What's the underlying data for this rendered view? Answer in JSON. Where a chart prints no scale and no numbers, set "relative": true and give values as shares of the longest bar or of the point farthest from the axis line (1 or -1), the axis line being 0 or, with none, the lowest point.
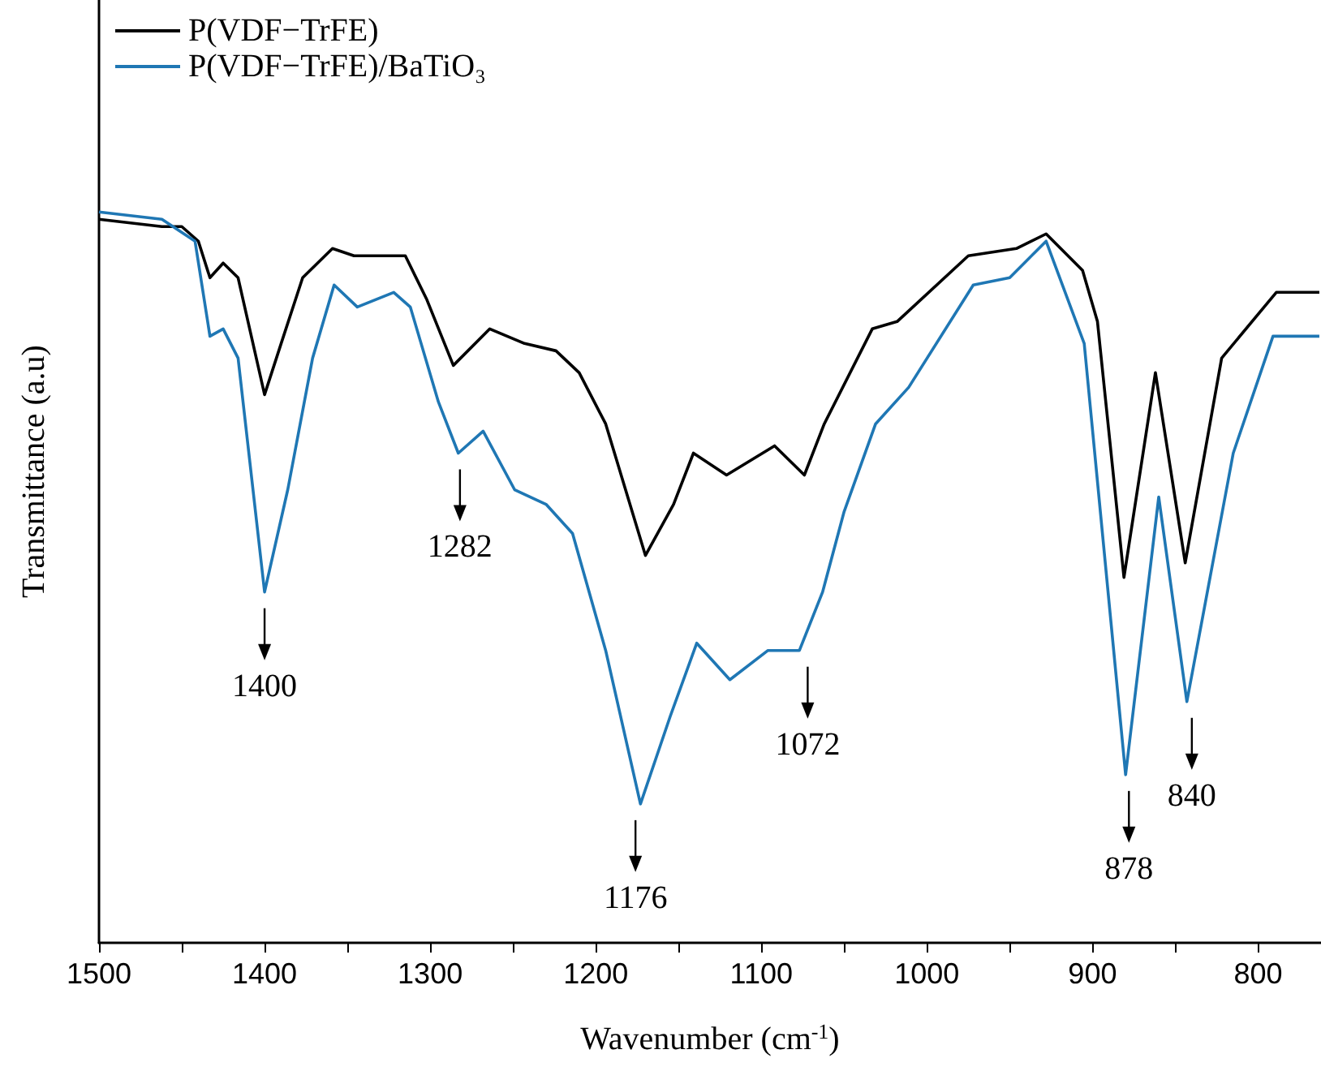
{
  "chart_data": {
    "type": "line",
    "relative": true,
    "xlabel": "Wavenumber (cm$^{-1}$)",
    "ylabel": "Transmittance (a.u)",
    "xlim": [
      1500,
      762
    ],
    "xticks": [
      1500,
      {
        "value": 1450,
        "label": null
      },
      1400,
      {
        "value": 1350,
        "label": null
      },
      1300,
      {
        "value": 1250,
        "label": null
      },
      1200,
      {
        "value": 1150,
        "label": null
      },
      1100,
      {
        "value": 1050,
        "label": null
      },
      1000,
      {
        "value": 950,
        "label": null
      },
      900,
      {
        "value": 850,
        "label": null
      },
      800
    ],
    "legend": "top left",
    "grid": false,
    "marker": "none",
    "line_style": "solid",
    "series": [
      {
        "name": "P(VDF−TrFE)",
        "color": "#000000",
        "x": [
          1500,
          1462,
          1450,
          1440,
          1433,
          1425,
          1416,
          1400,
          1390,
          1377,
          1359,
          1346,
          1325,
          1315,
          1302,
          1286,
          1264,
          1243,
          1224,
          1210,
          1194,
          1170,
          1153,
          1141,
          1121,
          1092,
          1074,
          1062,
          1033,
          1018,
          975,
          946,
          928,
          906,
          897,
          881,
          862,
          844,
          822,
          789,
          763
        ],
        "values": [
          0.99,
          0.98,
          0.98,
          0.96,
          0.91,
          0.93,
          0.91,
          0.75,
          0.82,
          0.91,
          0.95,
          0.94,
          0.94,
          0.94,
          0.88,
          0.79,
          0.84,
          0.82,
          0.81,
          0.78,
          0.71,
          0.53,
          0.6,
          0.67,
          0.64,
          0.68,
          0.64,
          0.71,
          0.84,
          0.85,
          0.94,
          0.95,
          0.97,
          0.92,
          0.85,
          0.5,
          0.78,
          0.52,
          0.8,
          0.89,
          0.89
        ]
      },
      {
        "name": "P(VDF−TrFE)/BaTiO₃",
        "color": "#1f77b4",
        "x": [
          1500,
          1462,
          1442,
          1433,
          1425,
          1416,
          1400,
          1386,
          1371,
          1358,
          1344,
          1322,
          1312,
          1295,
          1283,
          1268,
          1249,
          1230,
          1214,
          1194,
          1173,
          1155,
          1139,
          1119,
          1096,
          1077,
          1063,
          1050,
          1031,
          1011,
          972,
          950,
          928,
          905,
          880,
          860,
          843,
          815,
          791,
          763
        ],
        "values": [
          1,
          0.99,
          0.96,
          0.83,
          0.84,
          0.8,
          0.48,
          0.62,
          0.8,
          0.9,
          0.87,
          0.89,
          0.87,
          0.74,
          0.67,
          0.7,
          0.62,
          0.6,
          0.56,
          0.4,
          0.19,
          0.31,
          0.41,
          0.36,
          0.4,
          0.4,
          0.48,
          0.59,
          0.71,
          0.76,
          0.9,
          0.91,
          0.96,
          0.82,
          0.23,
          0.61,
          0.33,
          0.67,
          0.83,
          0.83
        ]
      }
    ],
    "annotations": [
      {
        "text": "1400",
        "x": 1400,
        "y": 0.48
      },
      {
        "text": "1282",
        "x": 1282,
        "y": 0.67
      },
      {
        "text": "1176",
        "x": 1176,
        "y": 0.19
      },
      {
        "text": "1072",
        "x": 1072,
        "y": 0.4
      },
      {
        "text": "878",
        "x": 878,
        "y": 0.23
      },
      {
        "text": "840",
        "x": 840,
        "y": 0.33
      }
    ]
  }
}
